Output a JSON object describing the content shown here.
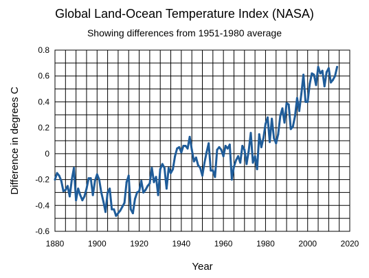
{
  "chart_data": {
    "type": "line",
    "title": "Global Land-Ocean Temperature Index (NASA)",
    "subtitle": "Showing differences from 1951-1980 average",
    "xlabel": "Year",
    "ylabel": "Difference in degrees C",
    "xlim": [
      1880,
      2020
    ],
    "ylim": [
      -0.6,
      0.8
    ],
    "xticks": [
      1880,
      1900,
      1920,
      1940,
      1960,
      1980,
      2000,
      2020
    ],
    "yticks": [
      -0.6,
      -0.4,
      -0.2,
      0,
      0.2,
      0.4,
      0.6,
      0.8
    ],
    "grid": true,
    "series_color": "#1f5c99",
    "x": [
      1880,
      1881,
      1882,
      1883,
      1884,
      1885,
      1886,
      1887,
      1888,
      1889,
      1890,
      1891,
      1892,
      1893,
      1894,
      1895,
      1896,
      1897,
      1898,
      1899,
      1900,
      1901,
      1902,
      1903,
      1904,
      1905,
      1906,
      1907,
      1908,
      1909,
      1910,
      1911,
      1912,
      1913,
      1914,
      1915,
      1916,
      1917,
      1918,
      1919,
      1920,
      1921,
      1922,
      1923,
      1924,
      1925,
      1926,
      1927,
      1928,
      1929,
      1930,
      1931,
      1932,
      1933,
      1934,
      1935,
      1936,
      1937,
      1938,
      1939,
      1940,
      1941,
      1942,
      1943,
      1944,
      1945,
      1946,
      1947,
      1948,
      1949,
      1950,
      1951,
      1952,
      1953,
      1954,
      1955,
      1956,
      1957,
      1958,
      1959,
      1960,
      1961,
      1962,
      1963,
      1964,
      1965,
      1966,
      1967,
      1968,
      1969,
      1970,
      1971,
      1972,
      1973,
      1974,
      1975,
      1976,
      1977,
      1978,
      1979,
      1980,
      1981,
      1982,
      1983,
      1984,
      1985,
      1986,
      1987,
      1988,
      1989,
      1990,
      1991,
      1992,
      1993,
      1994,
      1995,
      1996,
      1997,
      1998,
      1999,
      2000,
      2001,
      2002,
      2003,
      2004,
      2005,
      2006,
      2007,
      2008,
      2009,
      2010,
      2011,
      2012,
      2013,
      2014
    ],
    "y": [
      -0.2,
      -0.15,
      -0.17,
      -0.21,
      -0.29,
      -0.28,
      -0.25,
      -0.33,
      -0.2,
      -0.11,
      -0.36,
      -0.27,
      -0.32,
      -0.36,
      -0.33,
      -0.27,
      -0.19,
      -0.19,
      -0.32,
      -0.21,
      -0.16,
      -0.2,
      -0.3,
      -0.37,
      -0.45,
      -0.3,
      -0.27,
      -0.43,
      -0.43,
      -0.48,
      -0.46,
      -0.44,
      -0.41,
      -0.38,
      -0.22,
      -0.17,
      -0.43,
      -0.46,
      -0.35,
      -0.3,
      -0.29,
      -0.21,
      -0.3,
      -0.28,
      -0.25,
      -0.23,
      -0.11,
      -0.22,
      -0.18,
      -0.32,
      -0.12,
      -0.08,
      -0.11,
      -0.27,
      -0.11,
      -0.15,
      -0.12,
      -0.02,
      0.04,
      0.05,
      0.01,
      0.06,
      0.06,
      0.04,
      0.13,
      0.03,
      -0.06,
      -0.03,
      -0.09,
      -0.11,
      -0.17,
      -0.07,
      0.01,
      0.08,
      -0.13,
      -0.13,
      -0.18,
      0.03,
      0.05,
      0.03,
      -0.02,
      0.06,
      0.04,
      0.07,
      -0.2,
      -0.1,
      -0.05,
      -0.02,
      -0.07,
      0.06,
      0.03,
      -0.08,
      0.02,
      0.16,
      -0.07,
      -0.02,
      -0.12,
      0.15,
      0.05,
      0.12,
      0.23,
      0.28,
      0.09,
      0.27,
      0.12,
      0.08,
      0.15,
      0.29,
      0.35,
      0.24,
      0.39,
      0.38,
      0.19,
      0.21,
      0.29,
      0.43,
      0.33,
      0.46,
      0.61,
      0.4,
      0.4,
      0.54,
      0.62,
      0.61,
      0.53,
      0.67,
      0.62,
      0.64,
      0.52,
      0.63,
      0.66,
      0.55,
      0.57,
      0.6,
      0.67
    ]
  }
}
